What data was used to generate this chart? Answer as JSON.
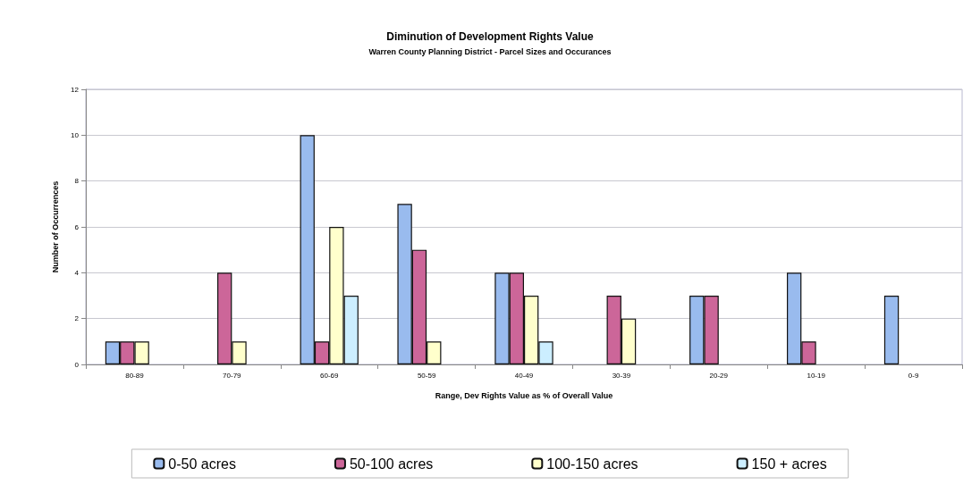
{
  "chart_data": {
    "type": "bar",
    "title": "Diminution of Development Rights Value",
    "subtitle": "Warren County Planning District - Parcel Sizes and Occurances",
    "xlabel": "Range, Dev Rights Value as % of Overall Value",
    "ylabel": "Number of Occurrences",
    "categories": [
      "80-89",
      "70-79",
      "60-69",
      "50-59",
      "40-49",
      "30-39",
      "20-29",
      "10-19",
      "0-9"
    ],
    "series": [
      {
        "name": "0-50 acres",
        "color": "#99bbee",
        "values": [
          1,
          null,
          10,
          7,
          4,
          null,
          3,
          4,
          3
        ]
      },
      {
        "name": "50-100 acres",
        "color": "#cc6699",
        "values": [
          1,
          4,
          1,
          5,
          4,
          3,
          3,
          1,
          null
        ]
      },
      {
        "name": "100-150 acres",
        "color": "#ffffcc",
        "values": [
          1,
          1,
          6,
          1,
          3,
          2,
          null,
          null,
          null
        ]
      },
      {
        "name": "150 + acres",
        "color": "#cceeff",
        "values": [
          null,
          null,
          3,
          null,
          1,
          null,
          null,
          null,
          null
        ]
      }
    ],
    "ylim": [
      0,
      12
    ],
    "yticks": [
      0,
      2,
      4,
      6,
      8,
      10,
      12
    ],
    "grid": "y",
    "legend": "bottom"
  }
}
